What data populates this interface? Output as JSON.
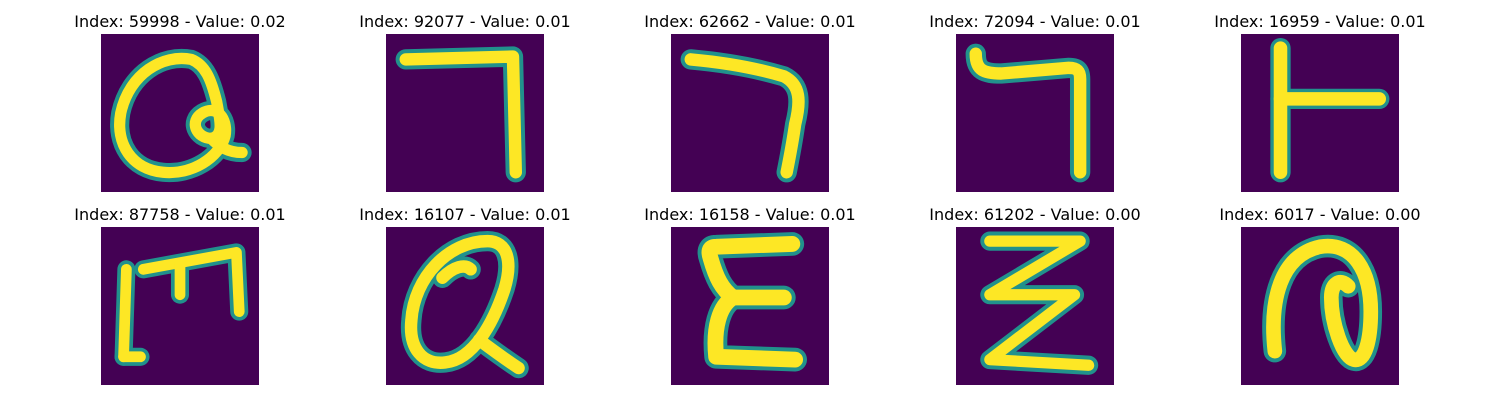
{
  "grid": {
    "panels": [
      {
        "title": "Index: 59998 - Value: 0.02",
        "glyph": "Q"
      },
      {
        "title": "Index: 92077 - Value: 0.01",
        "glyph": "7"
      },
      {
        "title": "Index: 62662 - Value: 0.01",
        "glyph": "7"
      },
      {
        "title": "Index: 72094 - Value: 0.01",
        "glyph": "7"
      },
      {
        "title": "Index: 16959 - Value: 0.01",
        "glyph": "T"
      },
      {
        "title": "Index: 87758 - Value: 0.01",
        "glyph": "m"
      },
      {
        "title": "Index: 16107 - Value: 0.01",
        "glyph": "Q"
      },
      {
        "title": "Index: 16158 - Value: 0.01",
        "glyph": "E"
      },
      {
        "title": "Index: 61202 - Value: 0.00",
        "glyph": "Z"
      },
      {
        "title": "Index: 6017 - Value: 0.00",
        "glyph": "O"
      }
    ]
  },
  "colors": {
    "background": "#440154",
    "stroke_core": "#fde725",
    "stroke_edge": "#21918c"
  }
}
